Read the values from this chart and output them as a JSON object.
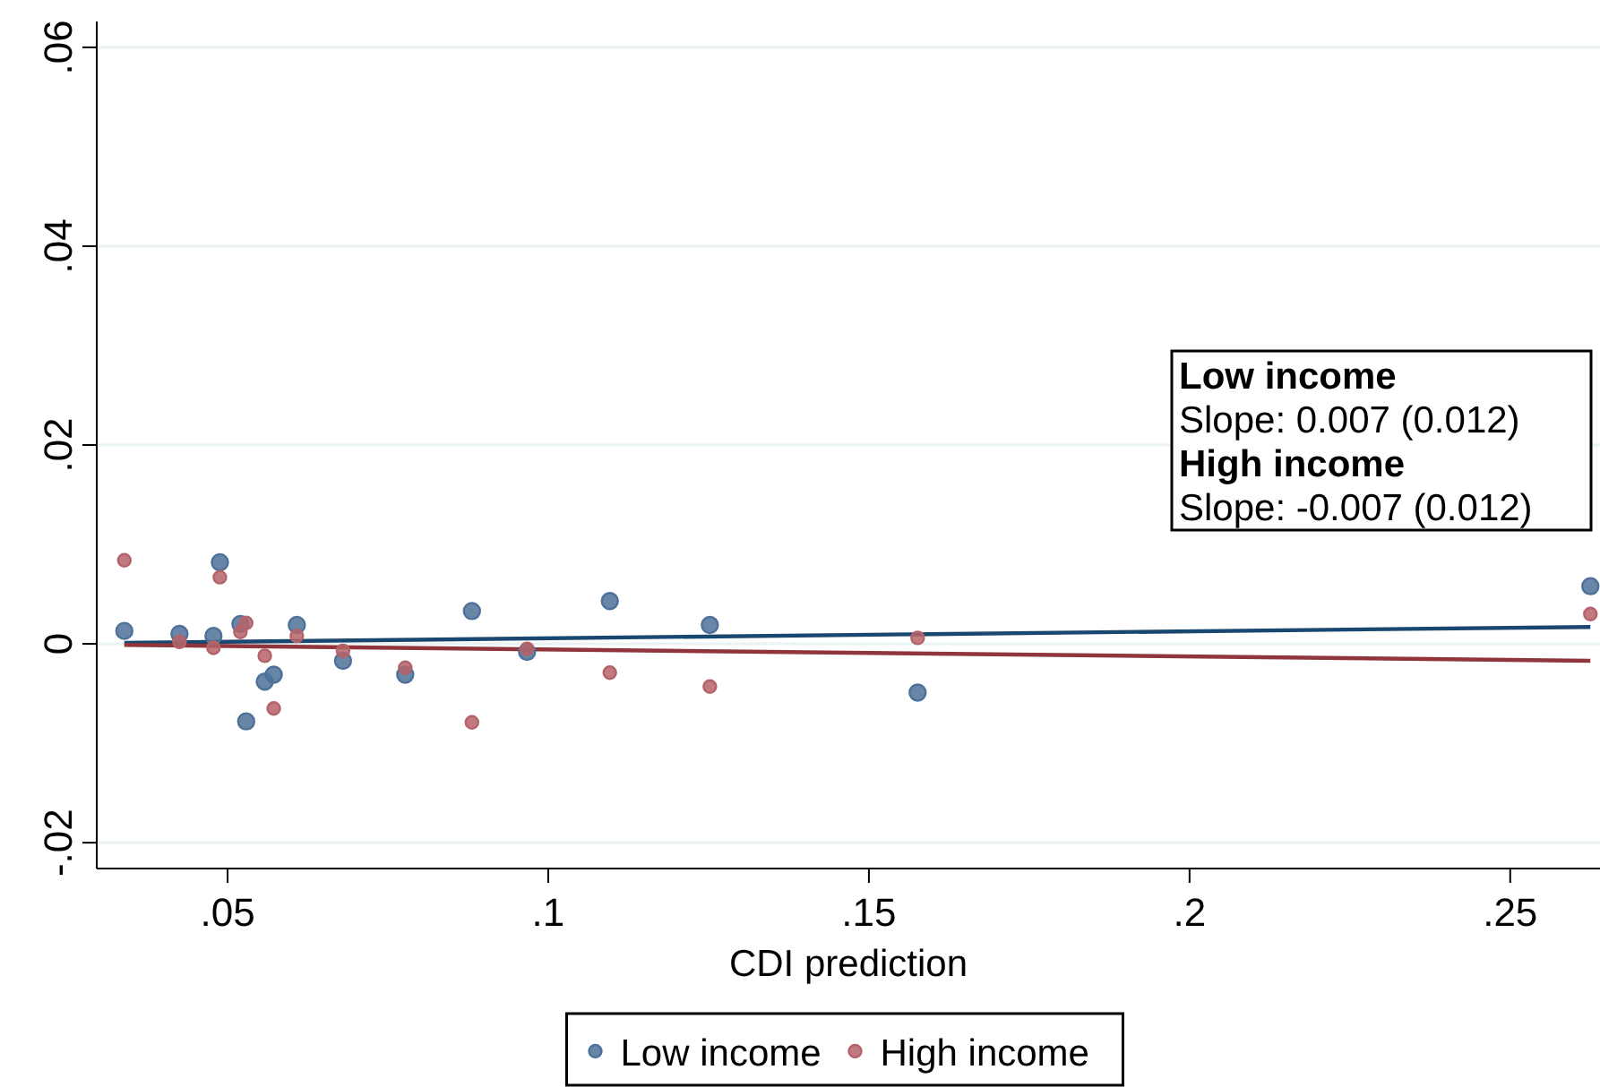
{
  "chart_data": {
    "type": "scatter",
    "xlabel": "CDI prediction",
    "xlim": [
      0.0296,
      0.264
    ],
    "xticks": [
      {
        "value": 0.05,
        "label": ".05"
      },
      {
        "value": 0.1,
        "label": ".1"
      },
      {
        "value": 0.15,
        "label": ".15"
      },
      {
        "value": 0.2,
        "label": ".2"
      },
      {
        "value": 0.25,
        "label": ".25"
      }
    ],
    "ylim": [
      -0.0226,
      0.0626
    ],
    "yticks": [
      {
        "value": -0.02,
        "label": "-.02"
      },
      {
        "value": 0,
        "label": "0"
      },
      {
        "value": 0.02,
        "label": ".02"
      },
      {
        "value": 0.04,
        "label": ".04"
      },
      {
        "value": 0.06,
        "label": ".06"
      }
    ],
    "grid": "y",
    "legend": "bottom",
    "annotations": [
      "Low income",
      "Slope: 0.007 (0.012)",
      "High income",
      "Slope: -0.007 (0.012)"
    ],
    "series": [
      {
        "type": "line",
        "marker": "none",
        "color": "#1a476f",
        "x": [
          0.0339,
          0.2625
        ],
        "values": [
          0.0001,
          0.0017
        ]
      },
      {
        "type": "line",
        "marker": "none",
        "color": "#90353b",
        "x": [
          0.0339,
          0.2625
        ],
        "values": [
          -0.0001,
          -0.0017
        ]
      },
      {
        "name": "Low income",
        "marker": "circle",
        "color": "#4e7199",
        "x": [
          0.0339,
          0.0425,
          0.0478,
          0.0488,
          0.052,
          0.0529,
          0.0558,
          0.0572,
          0.0608,
          0.068,
          0.0777,
          0.0881,
          0.0967,
          0.1096,
          0.1252,
          0.1576,
          0.2625
        ],
        "values": [
          0.0013,
          0.001,
          0.0008,
          0.0082,
          0.002,
          -0.0078,
          -0.0038,
          -0.0031,
          0.0019,
          -0.0017,
          -0.0031,
          0.0033,
          -0.0008,
          0.0043,
          0.0019,
          -0.0049,
          0.0058
        ]
      },
      {
        "name": "High income",
        "marker": "circle",
        "color": "#b5636a",
        "x": [
          0.0339,
          0.0425,
          0.0478,
          0.0488,
          0.052,
          0.0529,
          0.0558,
          0.0572,
          0.0608,
          0.068,
          0.0777,
          0.0881,
          0.0967,
          0.1096,
          0.1252,
          0.1576,
          0.2625
        ],
        "values": [
          0.0084,
          0.0002,
          -0.0004,
          0.0067,
          0.0012,
          0.0021,
          -0.0012,
          -0.0065,
          0.0008,
          -0.0007,
          -0.0024,
          -0.0079,
          -0.0005,
          -0.0029,
          -0.0043,
          0.0006,
          0.003
        ]
      }
    ]
  }
}
